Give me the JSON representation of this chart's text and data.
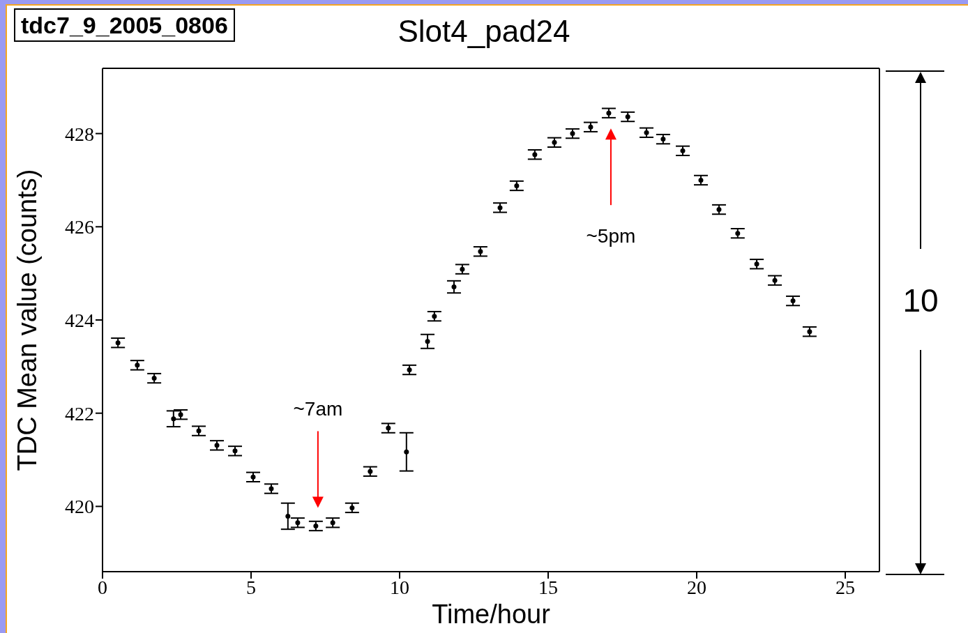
{
  "chart_data": {
    "type": "scatter",
    "title": "Slot4_pad24",
    "xlabel": "Time/hour",
    "ylabel": "TDC  Mean value (counts)",
    "x": [
      0.52,
      1.17,
      1.74,
      2.39,
      2.63,
      3.24,
      3.85,
      4.46,
      5.07,
      5.68,
      6.24,
      6.57,
      7.18,
      7.75,
      8.4,
      9.01,
      9.62,
      10.23,
      10.33,
      10.94,
      11.17,
      11.83,
      12.11,
      12.72,
      13.38,
      13.94,
      14.55,
      15.21,
      15.82,
      16.43,
      17.04,
      17.68,
      18.31,
      18.87,
      19.53,
      20.14,
      20.75,
      21.38,
      22.02,
      22.63,
      23.24,
      23.8
    ],
    "values": [
      423.51,
      423.03,
      422.75,
      421.88,
      421.97,
      421.62,
      421.31,
      421.19,
      420.63,
      420.38,
      419.79,
      419.65,
      419.58,
      419.65,
      419.97,
      420.75,
      421.68,
      421.17,
      422.93,
      423.54,
      424.08,
      424.71,
      425.09,
      425.47,
      426.41,
      426.88,
      427.55,
      427.81,
      428.0,
      428.14,
      428.44,
      428.36,
      428.02,
      427.88,
      427.63,
      427.0,
      426.37,
      425.86,
      425.2,
      424.85,
      424.41,
      423.75
    ],
    "errors": [
      0.1,
      0.1,
      0.1,
      0.17,
      0.1,
      0.1,
      0.1,
      0.1,
      0.1,
      0.1,
      0.28,
      0.1,
      0.1,
      0.1,
      0.1,
      0.1,
      0.1,
      0.41,
      0.1,
      0.15,
      0.1,
      0.13,
      0.1,
      0.1,
      0.1,
      0.1,
      0.1,
      0.1,
      0.1,
      0.1,
      0.1,
      0.1,
      0.1,
      0.1,
      0.1,
      0.1,
      0.1,
      0.1,
      0.1,
      0.1,
      0.1,
      0.1
    ],
    "color": "#000000",
    "marker": "circle",
    "xlim": [
      0,
      26.15
    ],
    "xticks": [
      0,
      5,
      10,
      15,
      20,
      25
    ],
    "ylim": [
      418.6,
      429.4
    ],
    "yticks": [
      420,
      422,
      424,
      426,
      428
    ],
    "grid": false,
    "legend": false,
    "annotations": [
      "tdc7_9_2005_0806",
      "~7am",
      "~5pm",
      "10"
    ]
  }
}
